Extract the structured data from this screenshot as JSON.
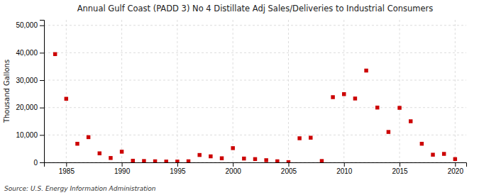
{
  "chart_data": {
    "type": "scatter",
    "title": "Annual Gulf Coast (PADD 3) No 4 Distillate Adj Sales/Deliveries to Industrial Consumers",
    "ylabel": "Thousand Gallons",
    "annotation": "Source: U.S. Energy Information Administration",
    "color": "#cc0000",
    "marker": "square",
    "grid": true,
    "xlim": [
      1983,
      2021
    ],
    "ylim": [
      0,
      52000
    ],
    "xticks": [
      1985,
      1990,
      1995,
      2000,
      2005,
      2010,
      2015,
      2020
    ],
    "yticks": [
      0,
      {
        "value": 10000,
        "label": "10,000"
      },
      {
        "value": 20000,
        "label": "20,000"
      },
      {
        "value": 30000,
        "label": "30,000"
      },
      {
        "value": 40000,
        "label": "40,000"
      },
      {
        "value": 50000,
        "label": "50,000"
      }
    ],
    "x": [
      1984,
      1985,
      1986,
      1987,
      1988,
      1989,
      1990,
      1991,
      1992,
      1993,
      1994,
      1995,
      1996,
      1997,
      1998,
      1999,
      2000,
      2001,
      2002,
      2003,
      2004,
      2005,
      2006,
      2007,
      2008,
      2009,
      2010,
      2011,
      2012,
      2013,
      2014,
      2015,
      2016,
      2017,
      2018,
      2019,
      2020
    ],
    "values": [
      39500,
      23200,
      6800,
      9200,
      3300,
      1600,
      3900,
      600,
      500,
      400,
      300,
      300,
      400,
      2700,
      2200,
      1500,
      5200,
      1400,
      1200,
      800,
      400,
      100,
      8800,
      9000,
      500,
      23800,
      24900,
      23300,
      33500,
      20000,
      11100,
      19900,
      15000,
      6800,
      2800,
      3100,
      1200
    ]
  }
}
